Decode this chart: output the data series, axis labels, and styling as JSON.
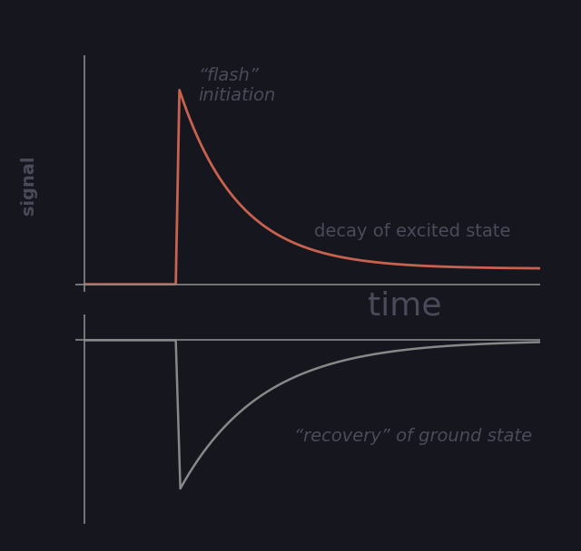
{
  "bg_color": "#16161f",
  "line_color_top": "#c8614e",
  "line_color_bottom": "#888888",
  "axis_color": "#888888",
  "text_color": "#4a4a5a",
  "time_color": "#4a4a5a",
  "signal_color": "#4a4a5a",
  "flash_label": "“flash”\ninitiation",
  "decay_label": "decay of excited state",
  "time_label": "time",
  "recovery_label": "“recovery” of ground state",
  "signal_label": "signal",
  "font_size_large": 26,
  "font_size_medium": 14,
  "font_size_signal": 13
}
